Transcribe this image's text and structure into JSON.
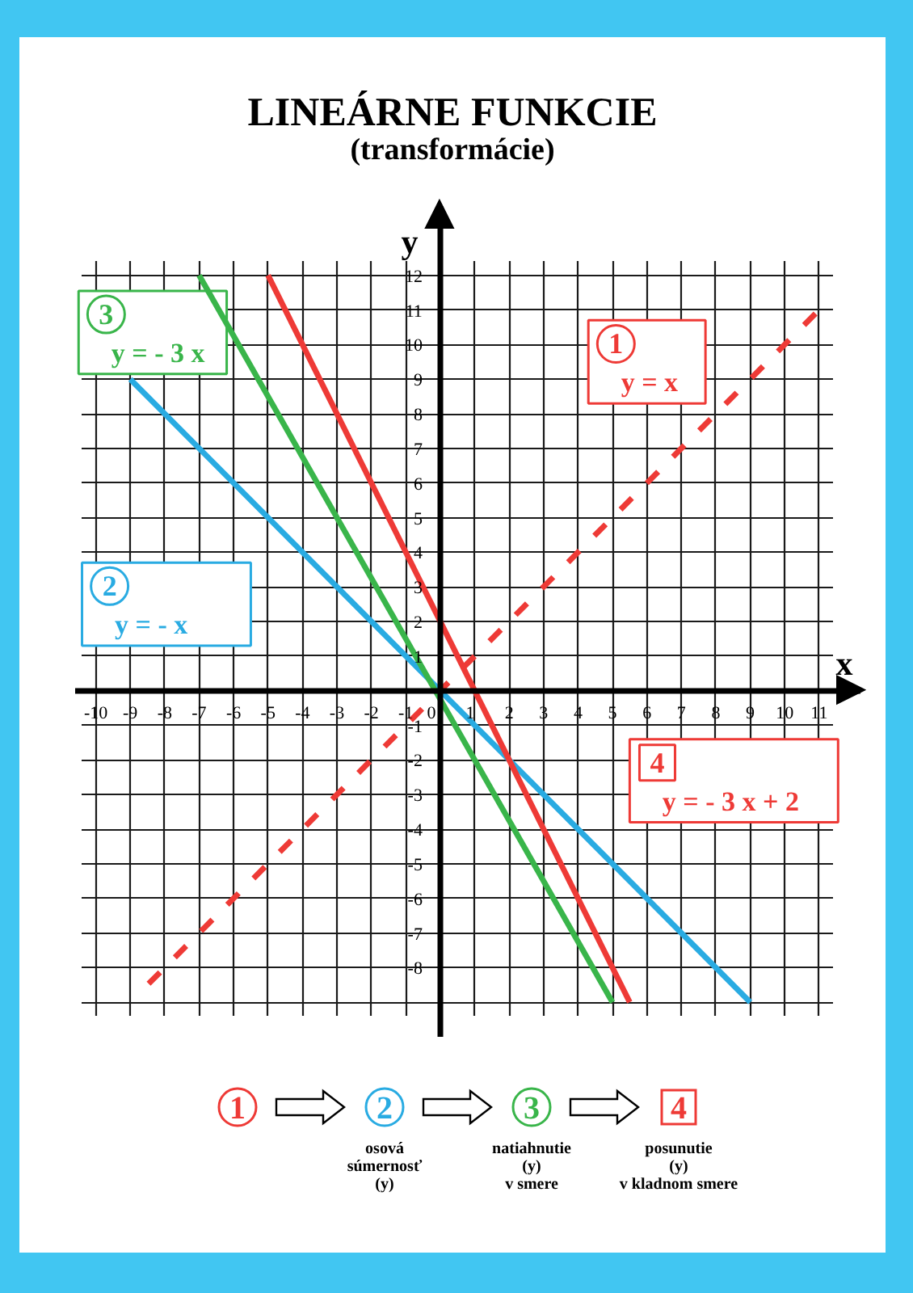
{
  "chart_data": {
    "type": "line",
    "title": "LINEÁRNE FUNKCIE",
    "subtitle": "(transformácie)",
    "xlabel": "x",
    "ylabel": "y",
    "xlim": [
      -10.6,
      12.2
    ],
    "ylim": [
      -10,
      14
    ],
    "xticks": [
      -10,
      -9,
      -8,
      -7,
      -6,
      -5,
      -4,
      -3,
      -2,
      -1,
      0,
      1,
      2,
      3,
      4,
      5,
      6,
      7,
      8,
      9,
      10,
      11
    ],
    "yticks": [
      {
        "value": -9,
        "label": null
      },
      -8,
      -7,
      -6,
      -5,
      -4,
      -3,
      -2,
      -1,
      {
        "value": 0,
        "label": null
      },
      1,
      2,
      3,
      4,
      5,
      6,
      7,
      8,
      9,
      10,
      11,
      12
    ],
    "grid": true,
    "legend": "top",
    "series": [
      {
        "name": "y = x",
        "color": "#ee3a36",
        "line_style": "dashed",
        "x": [
          -8.5,
          11
        ],
        "values": [
          -8.5,
          11
        ]
      },
      {
        "name": "y = - x",
        "color": "#29abe2",
        "x": [
          -9,
          9
        ],
        "values": [
          9,
          -9
        ]
      },
      {
        "name": "y = - 3 x",
        "color": "#39b54a",
        "x": [
          -7,
          5
        ],
        "values": [
          12,
          -9
        ]
      },
      {
        "name": "y = - 3 x + 2",
        "color": "#ee3a36",
        "x": [
          -5,
          5.5
        ],
        "values": [
          12,
          -9
        ]
      }
    ],
    "annotations": [
      "1",
      "2",
      "3",
      "4",
      "osová\nsúmernosť\n(y)",
      "natiahnutie\n(y)\nv smere",
      "posunutie\n(y)\nv kladnom smere"
    ]
  }
}
